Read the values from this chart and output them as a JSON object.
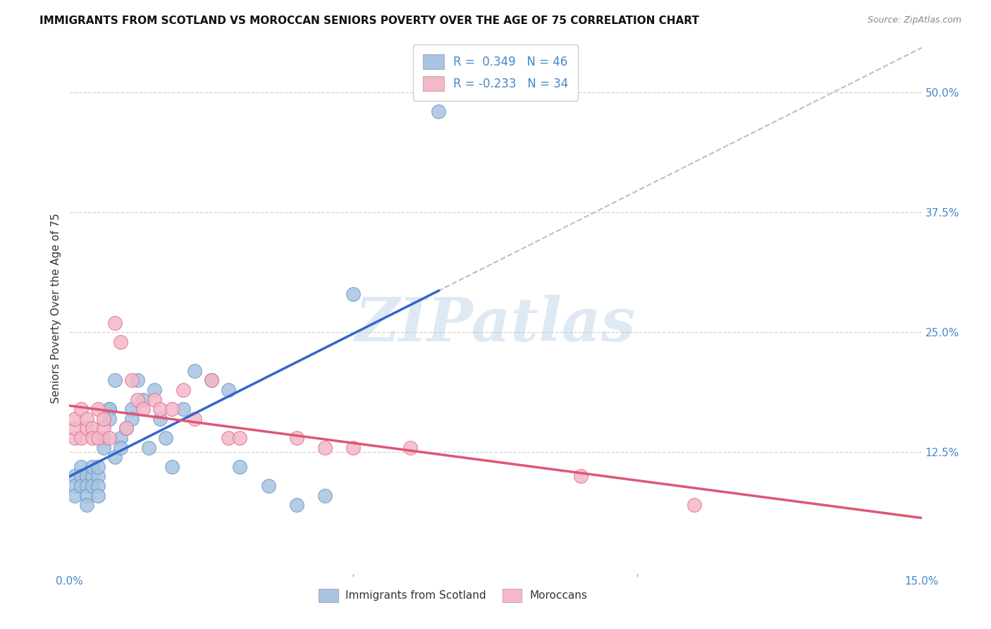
{
  "title": "IMMIGRANTS FROM SCOTLAND VS MOROCCAN SENIORS POVERTY OVER THE AGE OF 75 CORRELATION CHART",
  "source": "Source: ZipAtlas.com",
  "ylabel": "Seniors Poverty Over the Age of 75",
  "x_min": 0.0,
  "x_max": 0.15,
  "y_min": 0.0,
  "y_max": 0.55,
  "scotland_color": "#a8c4e0",
  "scotland_edge": "#6699cc",
  "moroccan_color": "#f4b8c8",
  "moroccan_edge": "#e07090",
  "scotland_R": 0.349,
  "scotland_N": 46,
  "moroccan_R": -0.233,
  "moroccan_N": 34,
  "watermark_text": "ZIPatlas",
  "background_color": "#ffffff",
  "grid_color": "#cccccc",
  "trend_blue": "#3366cc",
  "trend_pink": "#e05575",
  "trend_dashed_color": "#aabbcc",
  "scotland_x": [
    0.001,
    0.001,
    0.001,
    0.002,
    0.002,
    0.002,
    0.003,
    0.003,
    0.003,
    0.003,
    0.004,
    0.004,
    0.004,
    0.005,
    0.005,
    0.005,
    0.005,
    0.006,
    0.006,
    0.007,
    0.007,
    0.007,
    0.008,
    0.008,
    0.009,
    0.009,
    0.01,
    0.011,
    0.011,
    0.012,
    0.013,
    0.014,
    0.015,
    0.016,
    0.017,
    0.018,
    0.02,
    0.022,
    0.025,
    0.028,
    0.03,
    0.035,
    0.04,
    0.045,
    0.05,
    0.065
  ],
  "scotland_y": [
    0.1,
    0.09,
    0.08,
    0.11,
    0.1,
    0.09,
    0.1,
    0.09,
    0.08,
    0.07,
    0.1,
    0.09,
    0.11,
    0.1,
    0.09,
    0.11,
    0.08,
    0.14,
    0.13,
    0.17,
    0.17,
    0.16,
    0.12,
    0.2,
    0.14,
    0.13,
    0.15,
    0.17,
    0.16,
    0.2,
    0.18,
    0.13,
    0.19,
    0.16,
    0.14,
    0.11,
    0.17,
    0.21,
    0.2,
    0.19,
    0.11,
    0.09,
    0.07,
    0.08,
    0.29,
    0.48
  ],
  "moroccan_x": [
    0.001,
    0.001,
    0.001,
    0.002,
    0.002,
    0.003,
    0.003,
    0.004,
    0.004,
    0.005,
    0.005,
    0.006,
    0.006,
    0.007,
    0.008,
    0.009,
    0.01,
    0.011,
    0.012,
    0.013,
    0.015,
    0.016,
    0.018,
    0.02,
    0.022,
    0.025,
    0.028,
    0.03,
    0.04,
    0.045,
    0.05,
    0.06,
    0.09,
    0.11
  ],
  "moroccan_y": [
    0.14,
    0.15,
    0.16,
    0.14,
    0.17,
    0.15,
    0.16,
    0.15,
    0.14,
    0.17,
    0.14,
    0.15,
    0.16,
    0.14,
    0.26,
    0.24,
    0.15,
    0.2,
    0.18,
    0.17,
    0.18,
    0.17,
    0.17,
    0.19,
    0.16,
    0.2,
    0.14,
    0.14,
    0.14,
    0.13,
    0.13,
    0.13,
    0.1,
    0.07
  ]
}
